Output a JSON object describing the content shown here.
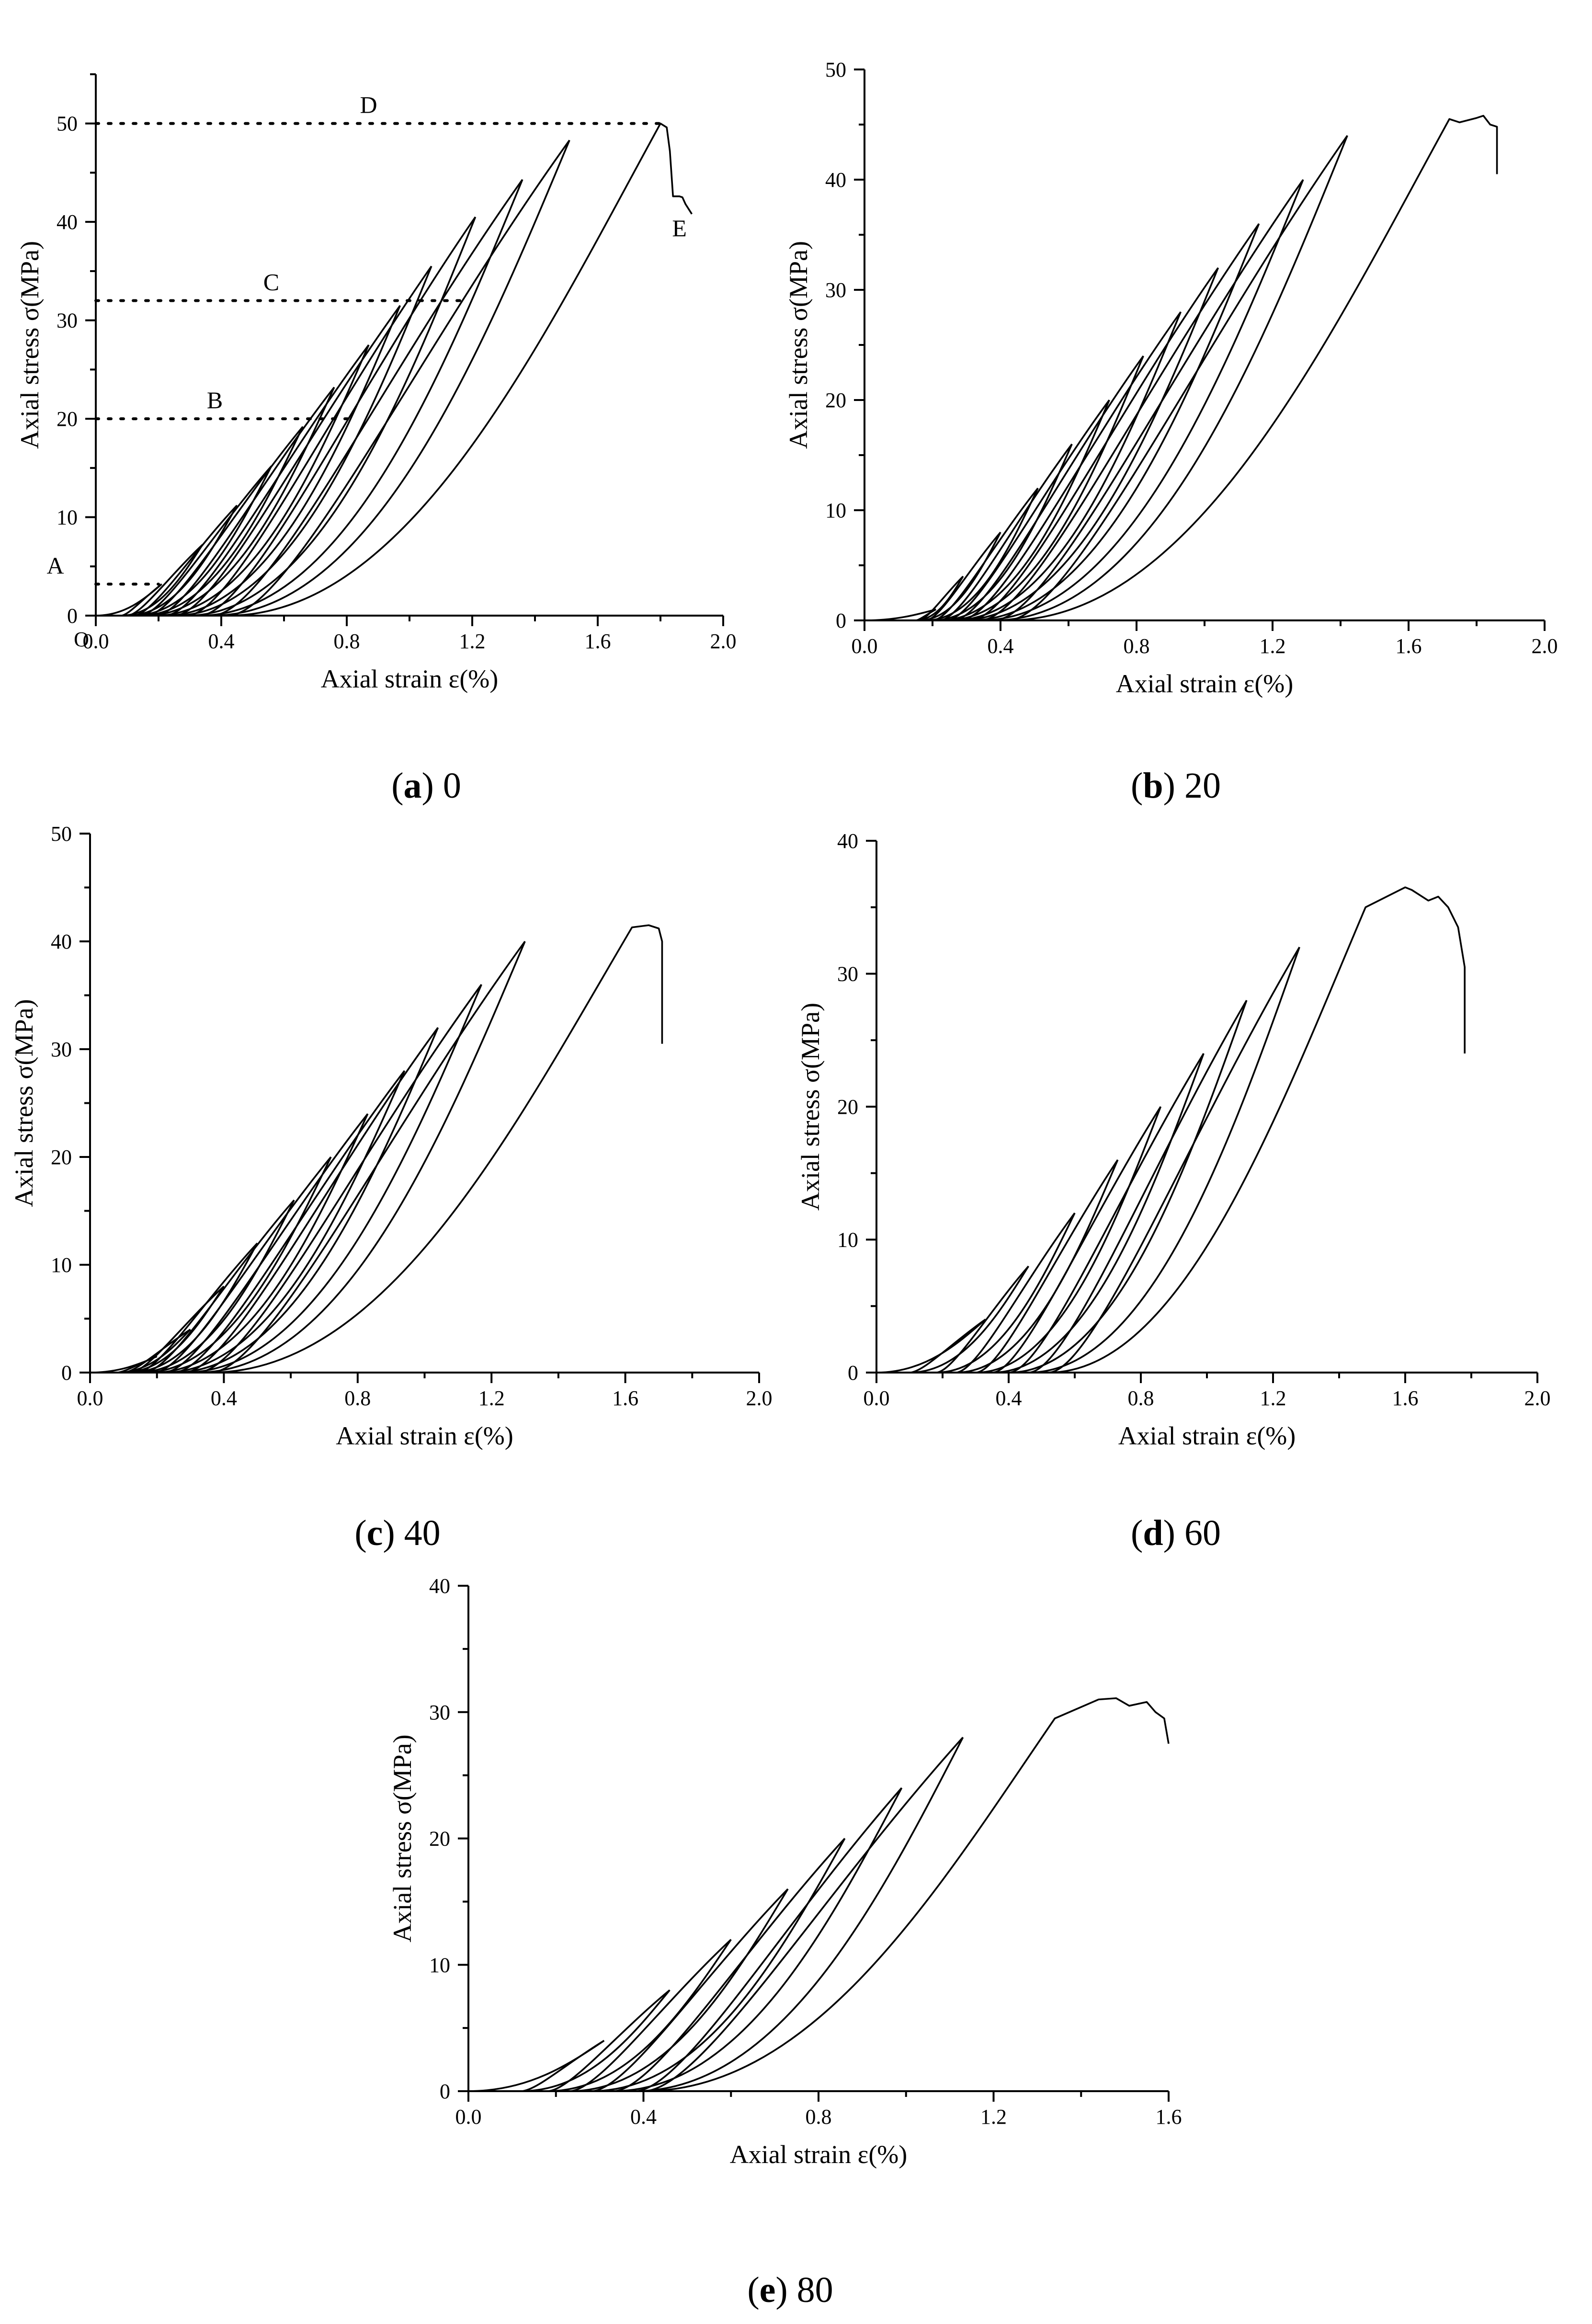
{
  "figure": {
    "panels": [
      {
        "id": "a",
        "caption_letter": "a",
        "caption_value": "0"
      },
      {
        "id": "b",
        "caption_letter": "b",
        "caption_value": "20"
      },
      {
        "id": "c",
        "caption_letter": "c",
        "caption_value": "40"
      },
      {
        "id": "d",
        "caption_letter": "d",
        "caption_value": "60"
      },
      {
        "id": "e",
        "caption_letter": "e",
        "caption_value": "80"
      }
    ]
  },
  "chart_data": [
    {
      "type": "line",
      "panel": "a",
      "caption": "(a) 0",
      "xlabel": "Axial strain  ε(%)",
      "ylabel": "Axial stress σ(MPa)",
      "xlim": [
        0,
        2.0
      ],
      "ylim": [
        0,
        55
      ],
      "xticks": [
        "0.0",
        "0.4",
        "0.8",
        "1.2",
        "1.6",
        "2.0"
      ],
      "yticks": [
        "0",
        "10",
        "20",
        "30",
        "40",
        "50"
      ],
      "origin_label": "O",
      "reference_lines": [
        {
          "label": "A",
          "y": 3.2,
          "x_end": 0.2
        },
        {
          "label": "B",
          "y": 20,
          "x_end": 0.82
        },
        {
          "label": "C",
          "y": 32,
          "x_end": 1.18
        },
        {
          "label": "D",
          "y": 50,
          "x_end": 1.8
        }
      ],
      "point_labels": [
        {
          "label": "E",
          "x": 1.83,
          "y": 40.5
        }
      ],
      "cycles": [
        {
          "peak_x": 0.21,
          "peak_y": 3.2,
          "residual_x": 0.08
        },
        {
          "peak_x": 0.34,
          "peak_y": 7.2,
          "residual_x": 0.1
        },
        {
          "peak_x": 0.45,
          "peak_y": 11.2,
          "residual_x": 0.12
        },
        {
          "peak_x": 0.56,
          "peak_y": 15.2,
          "residual_x": 0.14
        },
        {
          "peak_x": 0.66,
          "peak_y": 19.2,
          "residual_x": 0.16
        },
        {
          "peak_x": 0.76,
          "peak_y": 23.2,
          "residual_x": 0.19
        },
        {
          "peak_x": 0.87,
          "peak_y": 27.5,
          "residual_x": 0.22
        },
        {
          "peak_x": 0.97,
          "peak_y": 31.5,
          "residual_x": 0.25
        },
        {
          "peak_x": 1.07,
          "peak_y": 35.5,
          "residual_x": 0.29
        },
        {
          "peak_x": 1.21,
          "peak_y": 40.5,
          "residual_x": 0.33
        },
        {
          "peak_x": 1.36,
          "peak_y": 44.3,
          "residual_x": 0.37
        },
        {
          "peak_x": 1.51,
          "peak_y": 48.3,
          "residual_x": 0.42
        }
      ],
      "final_curve": {
        "start_x": 0.42,
        "points": [
          [
            1.8,
            50
          ],
          [
            1.82,
            49.6
          ],
          [
            1.83,
            47.2
          ],
          [
            1.84,
            42.6
          ],
          [
            1.86,
            42.6
          ],
          [
            1.87,
            42.5
          ],
          [
            1.88,
            41.8
          ],
          [
            1.9,
            40.8
          ]
        ]
      }
    },
    {
      "type": "line",
      "panel": "b",
      "caption": "(b) 20",
      "xlabel": "Axial strain  ε(%)",
      "ylabel": "Axial stress  σ(MPa)",
      "xlim": [
        0,
        2.0
      ],
      "ylim": [
        0,
        50
      ],
      "xticks": [
        "0.0",
        "0.4",
        "0.8",
        "1.2",
        "1.6",
        "2.0"
      ],
      "yticks": [
        "0",
        "10",
        "20",
        "30",
        "40",
        "50"
      ],
      "cycles": [
        {
          "peak_x": 0.21,
          "peak_y": 1.0,
          "residual_x": 0.15
        },
        {
          "peak_x": 0.29,
          "peak_y": 4.0,
          "residual_x": 0.16
        },
        {
          "peak_x": 0.4,
          "peak_y": 8.0,
          "residual_x": 0.18
        },
        {
          "peak_x": 0.51,
          "peak_y": 12.0,
          "residual_x": 0.2
        },
        {
          "peak_x": 0.61,
          "peak_y": 16.0,
          "residual_x": 0.22
        },
        {
          "peak_x": 0.72,
          "peak_y": 20.0,
          "residual_x": 0.24
        },
        {
          "peak_x": 0.82,
          "peak_y": 24.0,
          "residual_x": 0.26
        },
        {
          "peak_x": 0.93,
          "peak_y": 28.0,
          "residual_x": 0.28
        },
        {
          "peak_x": 1.04,
          "peak_y": 32.0,
          "residual_x": 0.31
        },
        {
          "peak_x": 1.16,
          "peak_y": 36.0,
          "residual_x": 0.34
        },
        {
          "peak_x": 1.29,
          "peak_y": 40.0,
          "residual_x": 0.38
        },
        {
          "peak_x": 1.42,
          "peak_y": 44.0,
          "residual_x": 0.42
        }
      ],
      "final_curve": {
        "start_x": 0.42,
        "points": [
          [
            1.72,
            45.5
          ],
          [
            1.75,
            45.2
          ],
          [
            1.8,
            45.6
          ],
          [
            1.82,
            45.8
          ],
          [
            1.84,
            45.0
          ],
          [
            1.86,
            44.8
          ],
          [
            1.86,
            40.5
          ]
        ]
      }
    },
    {
      "type": "line",
      "panel": "c",
      "caption": "(c) 40",
      "xlabel": "Axial strain  ε(%)",
      "ylabel": "Axial stress  σ(MPa)",
      "xlim": [
        0,
        2.0
      ],
      "ylim": [
        0,
        50
      ],
      "xticks": [
        "0.0",
        "0.4",
        "0.8",
        "1.2",
        "1.6",
        "2.0"
      ],
      "yticks": [
        "0",
        "10",
        "20",
        "30",
        "40",
        "50"
      ],
      "cycles": [
        {
          "peak_x": 0.2,
          "peak_y": 1.5,
          "residual_x": 0.08
        },
        {
          "peak_x": 0.3,
          "peak_y": 4.0,
          "residual_x": 0.1
        },
        {
          "peak_x": 0.4,
          "peak_y": 8.0,
          "residual_x": 0.12
        },
        {
          "peak_x": 0.5,
          "peak_y": 12.0,
          "residual_x": 0.14
        },
        {
          "peak_x": 0.61,
          "peak_y": 16.0,
          "residual_x": 0.16
        },
        {
          "peak_x": 0.72,
          "peak_y": 20.0,
          "residual_x": 0.19
        },
        {
          "peak_x": 0.83,
          "peak_y": 24.0,
          "residual_x": 0.22
        },
        {
          "peak_x": 0.94,
          "peak_y": 28.0,
          "residual_x": 0.25
        },
        {
          "peak_x": 1.04,
          "peak_y": 32.0,
          "residual_x": 0.28
        },
        {
          "peak_x": 1.17,
          "peak_y": 36.0,
          "residual_x": 0.32
        },
        {
          "peak_x": 1.3,
          "peak_y": 40.0,
          "residual_x": 0.36
        }
      ],
      "final_curve": {
        "start_x": 0.36,
        "points": [
          [
            1.62,
            41.3
          ],
          [
            1.67,
            41.5
          ],
          [
            1.7,
            41.2
          ],
          [
            1.71,
            40.0
          ],
          [
            1.71,
            30.5
          ]
        ]
      }
    },
    {
      "type": "line",
      "panel": "d",
      "caption": "(d) 60",
      "xlabel": "Axial strain  ε(%)",
      "ylabel": "Axial stress σ(MPa)",
      "xlim": [
        0,
        2.0
      ],
      "ylim": [
        0,
        40
      ],
      "xticks": [
        "0.0",
        "0.4",
        "0.8",
        "1.2",
        "1.6",
        "2.0"
      ],
      "yticks": [
        "0",
        "10",
        "20",
        "30",
        "40"
      ],
      "cycles": [
        {
          "peak_x": 0.33,
          "peak_y": 4.0,
          "residual_x": 0.1
        },
        {
          "peak_x": 0.46,
          "peak_y": 8.0,
          "residual_x": 0.18
        },
        {
          "peak_x": 0.6,
          "peak_y": 12.0,
          "residual_x": 0.24
        },
        {
          "peak_x": 0.73,
          "peak_y": 16.0,
          "residual_x": 0.3
        },
        {
          "peak_x": 0.86,
          "peak_y": 20.0,
          "residual_x": 0.35
        },
        {
          "peak_x": 0.99,
          "peak_y": 24.0,
          "residual_x": 0.4
        },
        {
          "peak_x": 1.12,
          "peak_y": 28.0,
          "residual_x": 0.46
        },
        {
          "peak_x": 1.28,
          "peak_y": 32.0,
          "residual_x": 0.52
        }
      ],
      "final_curve": {
        "start_x": 0.52,
        "points": [
          [
            1.48,
            35.0
          ],
          [
            1.6,
            36.5
          ],
          [
            1.62,
            36.3
          ],
          [
            1.67,
            35.5
          ],
          [
            1.7,
            35.8
          ],
          [
            1.73,
            35.0
          ],
          [
            1.76,
            33.5
          ],
          [
            1.78,
            30.5
          ],
          [
            1.78,
            24.0
          ]
        ]
      }
    },
    {
      "type": "line",
      "panel": "e",
      "caption": "(e) 80",
      "xlabel": "Axial strain  ε(%)",
      "ylabel": "Axial stress σ(MPa)",
      "xlim": [
        0,
        1.6
      ],
      "ylim": [
        0,
        40
      ],
      "xticks": [
        "0.0",
        "0.4",
        "0.8",
        "1.2",
        "1.6"
      ],
      "yticks": [
        "0",
        "10",
        "20",
        "30",
        "40"
      ],
      "cycles": [
        {
          "peak_x": 0.31,
          "peak_y": 4.0,
          "residual_x": 0.12
        },
        {
          "peak_x": 0.46,
          "peak_y": 8.0,
          "residual_x": 0.18
        },
        {
          "peak_x": 0.6,
          "peak_y": 12.0,
          "residual_x": 0.23
        },
        {
          "peak_x": 0.73,
          "peak_y": 16.0,
          "residual_x": 0.28
        },
        {
          "peak_x": 0.86,
          "peak_y": 20.0,
          "residual_x": 0.33
        },
        {
          "peak_x": 0.99,
          "peak_y": 24.0,
          "residual_x": 0.38
        },
        {
          "peak_x": 1.13,
          "peak_y": 28.0,
          "residual_x": 0.4
        }
      ],
      "final_curve": {
        "start_x": 0.4,
        "points": [
          [
            1.34,
            29.5
          ],
          [
            1.44,
            31.0
          ],
          [
            1.48,
            31.1
          ],
          [
            1.51,
            30.5
          ],
          [
            1.55,
            30.8
          ],
          [
            1.57,
            30.0
          ],
          [
            1.59,
            29.5
          ],
          [
            1.6,
            27.5
          ]
        ]
      }
    }
  ]
}
